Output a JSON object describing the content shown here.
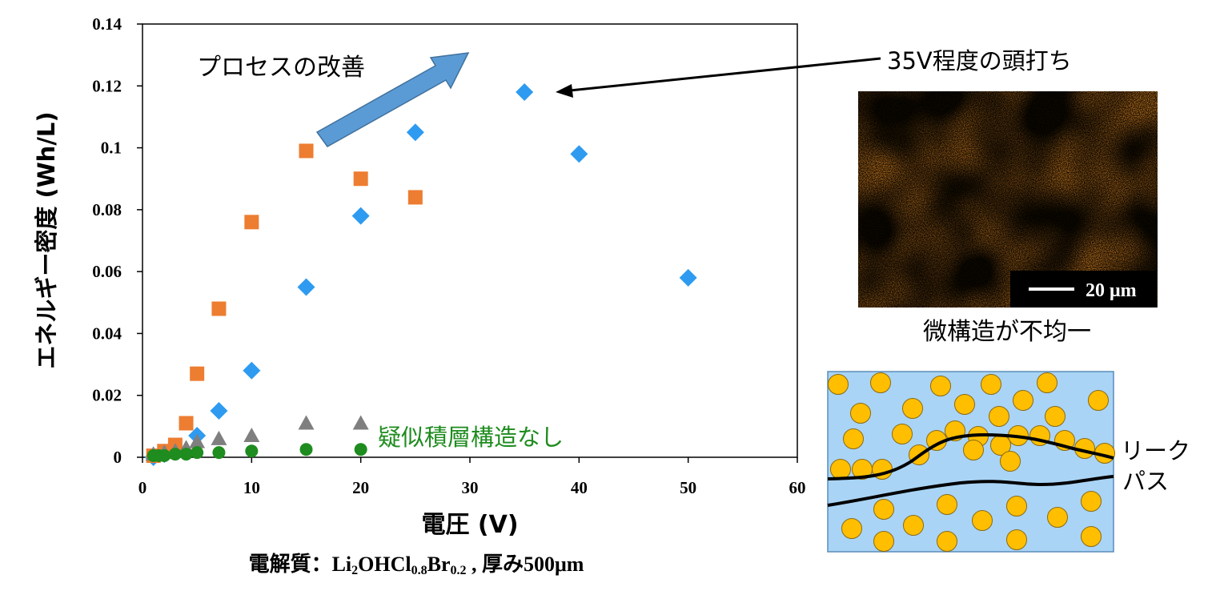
{
  "chart_data": {
    "type": "scatter",
    "xlabel": "電圧 (V)",
    "ylabel": "エネルギー密度 (Wh/L)",
    "xlim": [
      0,
      60
    ],
    "ylim": [
      0,
      0.14
    ],
    "x_ticks": [
      "0",
      "10",
      "20",
      "30",
      "40",
      "50",
      "60"
    ],
    "y_ticks": [
      "0",
      "0.02",
      "0.04",
      "0.06",
      "0.08",
      "0.1",
      "0.12",
      "0.14"
    ],
    "grid": false,
    "series": [
      {
        "marker": "diamond",
        "color": "#2E9BF0",
        "x": [
          1,
          2,
          3,
          5,
          7,
          10,
          15,
          20,
          25,
          35,
          40,
          50
        ],
        "y": [
          0,
          0.001,
          0.002,
          0.007,
          0.015,
          0.028,
          0.055,
          0.078,
          0.105,
          0.118,
          0.098,
          0.058
        ]
      },
      {
        "marker": "square",
        "color": "#ED7D31",
        "x": [
          1,
          2,
          3,
          4,
          5,
          7,
          10,
          15,
          20,
          25
        ],
        "y": [
          0.0005,
          0.002,
          0.004,
          0.011,
          0.027,
          0.048,
          0.076,
          0.099,
          0.09,
          0.084
        ]
      },
      {
        "marker": "triangle",
        "color": "#7F7F7F",
        "x": [
          1,
          2,
          3,
          4,
          5,
          7,
          10,
          15,
          20
        ],
        "y": [
          0.001,
          0.0015,
          0.002,
          0.003,
          0.005,
          0.006,
          0.007,
          0.011,
          0.011
        ]
      },
      {
        "name": "疑似積層構造なし",
        "marker": "circle",
        "color": "#1E8C1E",
        "x": [
          1,
          1.5,
          2,
          3,
          4,
          5,
          7,
          10,
          15,
          20
        ],
        "y": [
          0,
          0,
          0,
          0.0005,
          0.0005,
          0.001,
          0.001,
          0.0015,
          0.002,
          0.002
        ]
      }
    ]
  },
  "annotations": {
    "process_improvement": "プロセスの改善",
    "saturation": "35V程度の頭打ち",
    "no_structure": "疑似積層構造なし",
    "micrograph_scale": "20 μm",
    "nonuniform": "微構造が不均一",
    "leak_path_1": "リーク",
    "leak_path_2": "パス"
  },
  "caption": {
    "prefix": "電解質：",
    "formula_li": "Li",
    "sub_li": "2",
    "formula_ohcl": "OHCl",
    "sub_cl": "0.8",
    "formula_br": "Br",
    "sub_br": "0.2",
    "suffix": " , 厚み500μm"
  },
  "colors": {
    "arrow_fill": "#5B9BD5",
    "micrograph_orange": "#C8781E",
    "schematic_bg": "#A9D4F5",
    "particle": "#FFBF00"
  }
}
